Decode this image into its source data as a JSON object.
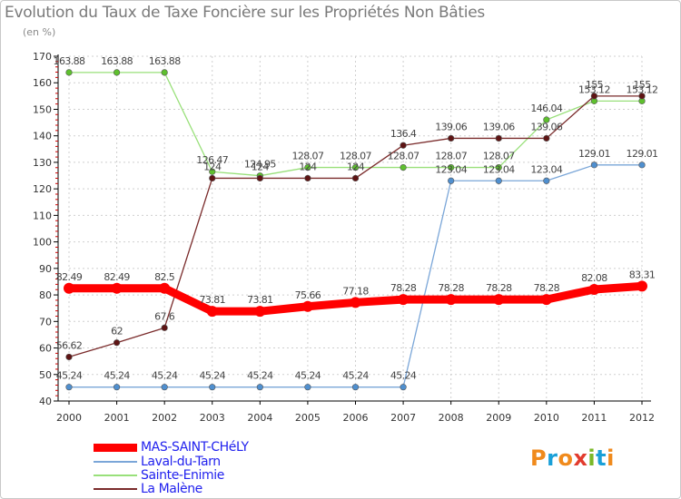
{
  "title": "Evolution du Taux de Taxe Foncière sur les Propriétés Non Bâties",
  "unit_label": "(en %)",
  "logo": {
    "text": "Proxiti",
    "letters": [
      "P",
      "r",
      "o",
      "x",
      "i",
      "t",
      "i"
    ],
    "colors": [
      "#f08a1c",
      "#1aa0d8",
      "#f08a1c",
      "#e23b2e",
      "#7ab828",
      "#1aa0d8",
      "#f08a1c"
    ]
  },
  "chart_data": {
    "type": "line",
    "title": "Evolution du Taux de Taxe Foncière sur les Propriétés Non Bâties",
    "ylabel": "(en %)",
    "xlabel": "",
    "x": [
      "2000",
      "2001",
      "2002",
      "2003",
      "2004",
      "2005",
      "2006",
      "2007",
      "2008",
      "2009",
      "2010",
      "2011",
      "2012"
    ],
    "ylim": [
      40,
      170
    ],
    "yticks": [
      40,
      50,
      60,
      70,
      80,
      90,
      100,
      110,
      120,
      130,
      140,
      150,
      160,
      170
    ],
    "grid": true,
    "legend_position": "bottom-left",
    "series": [
      {
        "name": "MAS-SAINT-CHéLY",
        "color": "#ff0000",
        "values": [
          82.49,
          82.49,
          82.5,
          73.81,
          73.81,
          75.66,
          77.18,
          78.28,
          78.28,
          78.28,
          78.28,
          82.08,
          83.31
        ],
        "labels": [
          "82.49",
          "82.49",
          "82.5",
          "73.81",
          "73.81",
          "75.66",
          "77.18",
          "78.28",
          "78.28",
          "78.28",
          "78.28",
          "82.08",
          "83.31"
        ]
      },
      {
        "name": "Laval-du-Tarn",
        "color": "#7aa6d8",
        "marker_color": "#4f8fcf",
        "values": [
          45.24,
          45.24,
          45.24,
          45.24,
          45.24,
          45.24,
          45.24,
          45.24,
          123.04,
          123.04,
          123.04,
          129.01,
          129.01
        ],
        "labels": [
          "45.24",
          "45.24",
          "45.24",
          "45.24",
          "45.24",
          "45.24",
          "45.24",
          "45.24",
          "123.04",
          "123.04",
          "123.04",
          "129.01",
          "129.01"
        ]
      },
      {
        "name": "Sainte-Enimie",
        "color": "#99e07a",
        "marker_color": "#5ec02e",
        "values": [
          163.88,
          163.88,
          163.88,
          126.47,
          124.95,
          128.07,
          128.07,
          128.07,
          128.07,
          128.07,
          146.04,
          153.12,
          153.12
        ],
        "labels": [
          "163.88",
          "163.88",
          "163.88",
          "126.47",
          "124.95",
          "128.07",
          "128.07",
          "128.07",
          "128.07",
          "128.07",
          "146.04",
          "153.12",
          "153.12"
        ]
      },
      {
        "name": "La Malène",
        "color": "#7a2b2b",
        "marker_color": "#5e1414",
        "values": [
          56.62,
          62,
          67.6,
          124,
          124,
          124,
          124,
          136.4,
          139.06,
          139.06,
          139.06,
          155,
          155
        ],
        "labels": [
          "56.62",
          "62",
          "67.6",
          "124",
          "124",
          "124",
          "124",
          "136.4",
          "139.06",
          "139.06",
          "139.06",
          "155",
          "155"
        ]
      }
    ]
  }
}
